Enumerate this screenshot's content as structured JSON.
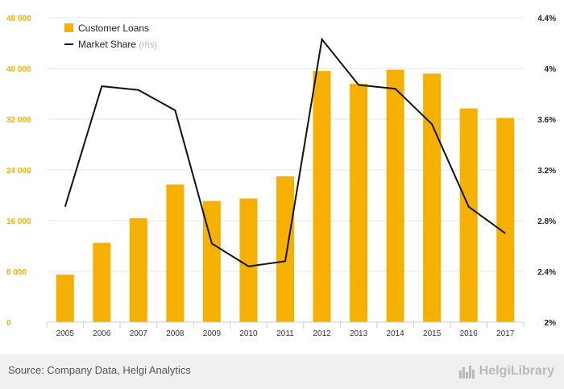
{
  "chart_data": {
    "type": "bar",
    "categories": [
      "2005",
      "2006",
      "2007",
      "2008",
      "2009",
      "2010",
      "2011",
      "2012",
      "2013",
      "2014",
      "2015",
      "2016",
      "2017"
    ],
    "series": [
      {
        "name": "Customer Loans",
        "type": "bar",
        "axis": "left",
        "color": "#f5b000",
        "values": [
          7500,
          12500,
          16400,
          21700,
          19100,
          19500,
          23000,
          39600,
          37600,
          39800,
          39200,
          33700,
          32200
        ]
      },
      {
        "name": "Market Share",
        "name_suffix": "(rhs)",
        "type": "line",
        "axis": "right",
        "color": "#111111",
        "values": [
          2.91,
          3.86,
          3.83,
          3.67,
          2.62,
          2.44,
          2.48,
          4.23,
          3.87,
          3.84,
          3.56,
          2.91,
          2.7
        ]
      }
    ],
    "y_left": {
      "ylim": [
        0,
        48000
      ],
      "ticks": [
        0,
        8000,
        16000,
        24000,
        32000,
        40000,
        48000
      ],
      "tick_labels": [
        "0",
        "8 000",
        "16 000",
        "24 000",
        "32 000",
        "40 000",
        "48 000"
      ],
      "color": "#f5b000"
    },
    "y_right": {
      "ylim": [
        2.0,
        4.4
      ],
      "ticks": [
        2.0,
        2.4,
        2.8,
        3.2,
        3.6,
        4.0,
        4.4
      ],
      "tick_labels": [
        "2%",
        "2.4%",
        "2.8%",
        "3.2%",
        "3.6%",
        "4%",
        "4.4%"
      ],
      "color": "#222222"
    },
    "grid": true,
    "legend": "top-left"
  },
  "footer": {
    "source": "Source: Company Data, Helgi Analytics",
    "brand": "HelgiLibrary"
  },
  "colors": {
    "bar": "#f5b000",
    "line": "#111111",
    "grid": "#e6e6e6",
    "footer_bg": "#f0f0f0"
  },
  "icons": {
    "brand": "city-skyline-icon"
  }
}
